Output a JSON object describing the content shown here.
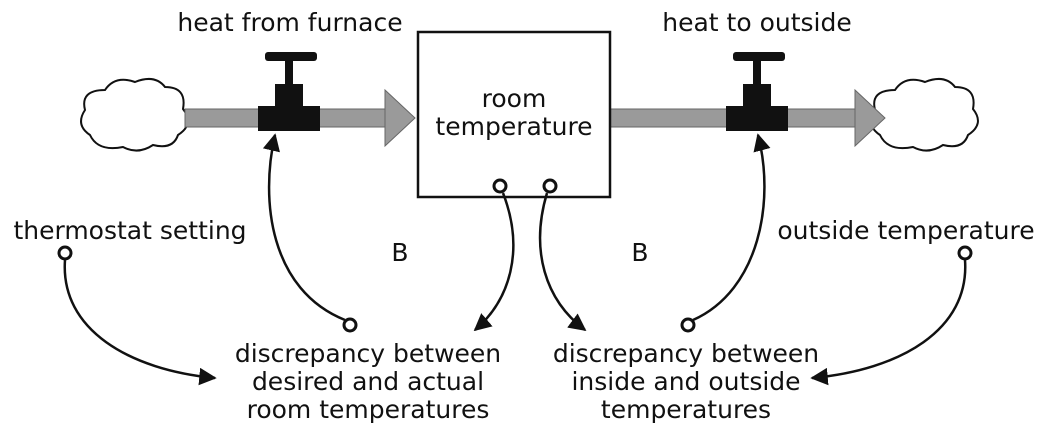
{
  "stock": {
    "label": [
      "room",
      "temperature"
    ]
  },
  "flows": [
    {
      "label": "heat from furnace"
    },
    {
      "label": "heat to outside"
    }
  ],
  "auxiliaries": [
    {
      "label": [
        "thermostat setting"
      ]
    },
    {
      "label": [
        "outside temperature"
      ]
    },
    {
      "label": [
        "discrepancy between",
        "desired and actual",
        "room temperatures"
      ]
    },
    {
      "label": [
        "discrepancy between",
        "inside and outside",
        "temperatures"
      ]
    }
  ],
  "loops": [
    {
      "label": "B"
    },
    {
      "label": "B"
    }
  ]
}
